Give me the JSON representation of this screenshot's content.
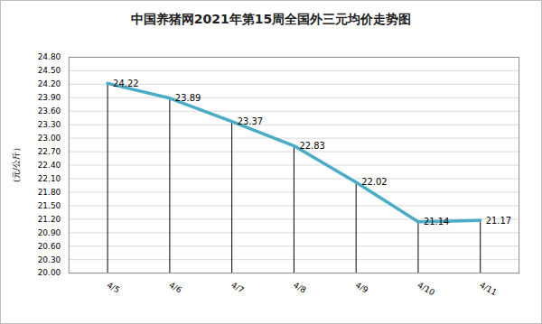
{
  "chart_data": {
    "type": "line",
    "title": "中国养猪网2021年第15周全国外三元均价走势图",
    "y_label": "（元/公斤）",
    "categories": [
      "4/5",
      "4/6",
      "4/7",
      "4/8",
      "4/9",
      "4/10",
      "4/11"
    ],
    "values": [
      24.22,
      23.89,
      23.37,
      22.83,
      22.02,
      21.14,
      21.17
    ],
    "color": "#4bacc6",
    "ylim": [
      20.0,
      24.8
    ],
    "yticks": [
      {
        "value": 20.0,
        "label": "20.00"
      },
      {
        "value": 20.3,
        "label": "20.30"
      },
      {
        "value": 20.6,
        "label": "20.60"
      },
      {
        "value": 20.9,
        "label": "20.90"
      },
      {
        "value": 21.2,
        "label": "21.20"
      },
      {
        "value": 21.5,
        "label": "21.50"
      },
      {
        "value": 21.8,
        "label": "21.80"
      },
      {
        "value": 22.1,
        "label": "22.10"
      },
      {
        "value": 22.4,
        "label": "22.40"
      },
      {
        "value": 22.7,
        "label": "22.70"
      },
      {
        "value": 23.0,
        "label": "23.00"
      },
      {
        "value": 23.3,
        "label": "23.30"
      },
      {
        "value": 23.6,
        "label": "23.60"
      },
      {
        "value": 23.9,
        "label": "23.90"
      },
      {
        "value": 24.2,
        "label": "24.20"
      },
      {
        "value": 24.5,
        "label": "24.50"
      },
      {
        "value": 24.8,
        "label": "24.80"
      }
    ],
    "grid": true,
    "data_labels": true
  }
}
